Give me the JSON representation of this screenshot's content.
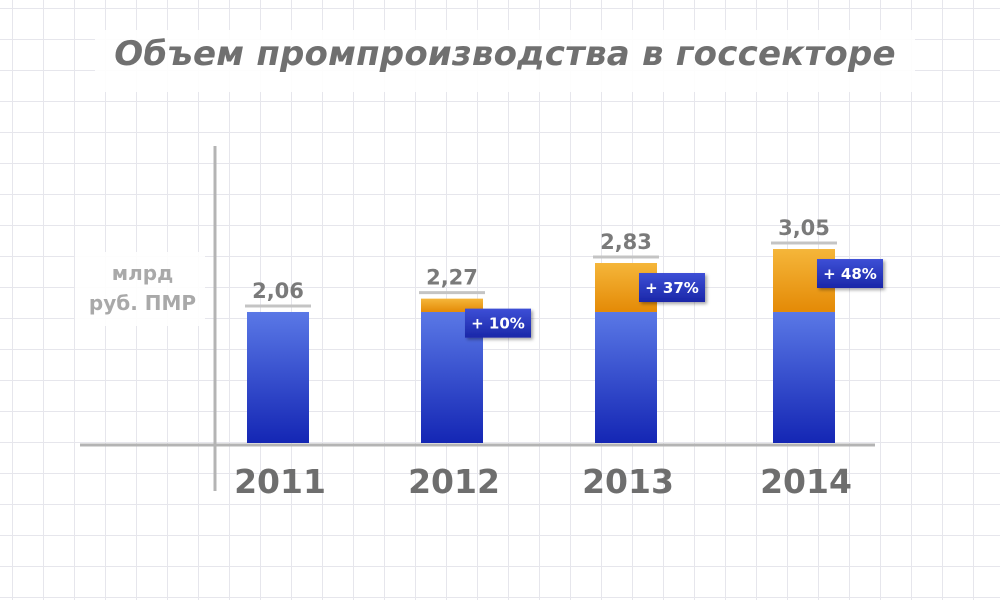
{
  "chart_data": {
    "type": "bar",
    "title": "Объем промпроизводства в госсекторе",
    "ylabel_lines": [
      "млрд",
      "руб. ПМР"
    ],
    "categories": [
      "2011",
      "2012",
      "2013",
      "2014"
    ],
    "series": [
      {
        "values": [
          2.06,
          2.06,
          2.06,
          2.06
        ]
      },
      {
        "values": [
          0,
          0.21,
          0.77,
          0.99
        ]
      }
    ],
    "totals": [
      2.06,
      2.27,
      2.83,
      3.05
    ],
    "total_labels": [
      "2,06",
      "2,27",
      "2,83",
      "3,05"
    ],
    "growth_labels": [
      "",
      "+ 10%",
      "+ 37%",
      "+ 48%"
    ],
    "ylim": [
      0,
      3.3
    ],
    "stacked": true,
    "grid": true,
    "colors": {
      "base_top": "#5a78e6",
      "base_bottom": "#1426b4",
      "increase_top": "#f5b63a",
      "increase_bottom": "#e48a06",
      "badge_top": "#3d4fd6",
      "badge_bottom": "#1a27a8",
      "axis": "#b4b4b4",
      "tick_text": "#6e6e6e",
      "value_text": "#7a7a7a"
    }
  }
}
